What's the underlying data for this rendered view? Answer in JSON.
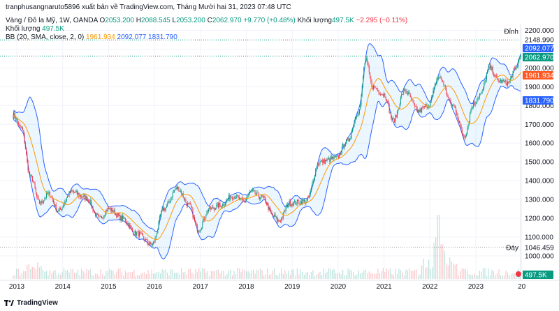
{
  "publisher_line": "tranphusangnaruto5896 xuất bản về TradingView.com, Tháng Mười hai 31, 2023 07:48 UTC",
  "symbol": {
    "name": "Vàng / Đô la Mỹ, 1W, OANDA",
    "o_label": "O",
    "o_value": "2053.200",
    "h_label": "H",
    "h_value": "2088.545",
    "l_label": "L",
    "l_value": "2053.200",
    "c_label": "C",
    "c_value": "2062.970",
    "change": "+9.770 (+0.48%)",
    "vol_label": "Khối lượng",
    "vol_value": "497.5K",
    "vol_change": "−2.295 (−0.11%)"
  },
  "volume_line": {
    "label": "Khối lượng",
    "value": "497.5K"
  },
  "bb_line": {
    "label": "BB (20, SMA, close, 2, 0)",
    "basis": "1961.934",
    "upper": "2092.077",
    "lower": "1831.790"
  },
  "footer": {
    "brand": "TradingView"
  },
  "colors": {
    "up": "#089981",
    "down": "#f23645",
    "basis": "#ff9800",
    "band": "#2962ff",
    "fill": "#2196f3",
    "text": "#131722"
  },
  "chart_data": {
    "type": "candlestick",
    "title": "Vàng / Đô la Mỹ, 1W, OANDA",
    "ylim": [
      950,
      2250
    ],
    "x_ticks": [
      "2013",
      "2014",
      "2015",
      "2016",
      "2017",
      "2018",
      "2019",
      "2020",
      "2021",
      "2022",
      "2023",
      "20"
    ],
    "y_ticks": [
      "2200.000",
      "2100.000",
      "2000.000",
      "1900.000",
      "1800.000",
      "1700.000",
      "1600.000",
      "1500.000",
      "1400.000",
      "1300.000",
      "1200.000",
      "1100.000",
      "1000.000"
    ],
    "price_labels": {
      "high_label": "Đỉnh",
      "high_value": "2148.990",
      "upper": "2092.077",
      "close": "2062.970",
      "basis": "1961.934",
      "lower": "1831.790",
      "low_label": "Đáy",
      "low_value": "1046.459"
    },
    "key_levels": {
      "high": 2148.99,
      "upper": 2092.077,
      "close": 2062.97,
      "basis": 1961.934,
      "lower": 1831.79,
      "low": 1046.459
    },
    "anchors": [
      [
        2012.92,
        1750
      ],
      [
        2013.1,
        1680
      ],
      [
        2013.3,
        1420
      ],
      [
        2013.5,
        1280
      ],
      [
        2013.7,
        1330
      ],
      [
        2013.9,
        1240
      ],
      [
        2014.2,
        1340
      ],
      [
        2014.5,
        1310
      ],
      [
        2014.8,
        1200
      ],
      [
        2015.0,
        1250
      ],
      [
        2015.3,
        1200
      ],
      [
        2015.6,
        1120
      ],
      [
        2015.95,
        1060
      ],
      [
        2016.2,
        1250
      ],
      [
        2016.5,
        1360
      ],
      [
        2016.75,
        1270
      ],
      [
        2016.95,
        1140
      ],
      [
        2017.2,
        1250
      ],
      [
        2017.45,
        1270
      ],
      [
        2017.7,
        1320
      ],
      [
        2017.95,
        1290
      ],
      [
        2018.1,
        1340
      ],
      [
        2018.35,
        1310
      ],
      [
        2018.6,
        1210
      ],
      [
        2018.7,
        1185
      ],
      [
        2018.95,
        1280
      ],
      [
        2019.3,
        1290
      ],
      [
        2019.6,
        1500
      ],
      [
        2019.95,
        1520
      ],
      [
        2020.2,
        1610
      ],
      [
        2020.45,
        1770
      ],
      [
        2020.6,
        2040
      ],
      [
        2020.75,
        1900
      ],
      [
        2021.0,
        1860
      ],
      [
        2021.2,
        1720
      ],
      [
        2021.45,
        1880
      ],
      [
        2021.75,
        1770
      ],
      [
        2021.95,
        1800
      ],
      [
        2022.2,
        1950
      ],
      [
        2022.5,
        1800
      ],
      [
        2022.75,
        1640
      ],
      [
        2022.95,
        1810
      ],
      [
        2023.1,
        1860
      ],
      [
        2023.3,
        2000
      ],
      [
        2023.5,
        1930
      ],
      [
        2023.7,
        1920
      ],
      [
        2023.85,
        1990
      ],
      [
        2023.98,
        2063
      ]
    ],
    "volume_spike": {
      "x": 2022.2,
      "value": "peak"
    }
  }
}
